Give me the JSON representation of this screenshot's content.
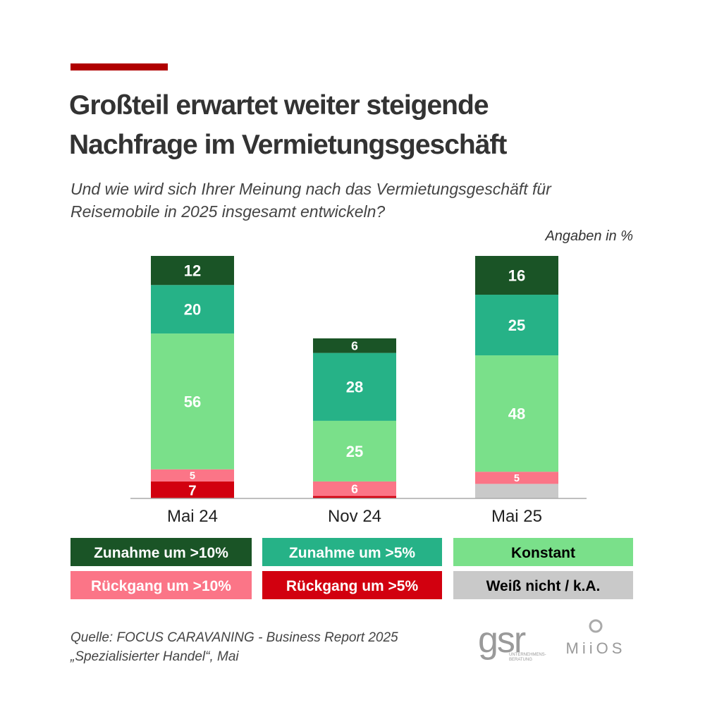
{
  "chart_data": {
    "type": "stacked-bar",
    "title": [
      "Großteil erwartet weiter steigende",
      "Nachfrage im Vermietungsgeschäft"
    ],
    "subtitle": [
      "Und wie wird sich Ihrer Meinung nach das Vermietungsgeschäft für",
      "Reisemobile in 2025 insgesamt entwickeln?"
    ],
    "unit_note": "Angaben in %",
    "categories": [
      "Mai 24",
      "Nov 24",
      "Mai 25"
    ],
    "ylim": [
      0,
      100
    ],
    "series": [
      {
        "name": "Weiß nicht / k.A.",
        "color": "#c9c9c9",
        "values": [
          0,
          0,
          6
        ],
        "value_labels": [
          null,
          null,
          null
        ]
      },
      {
        "name": "Rückgang um >5%",
        "color": "#d2000f",
        "values": [
          7,
          1,
          0
        ],
        "value_labels": [
          "7",
          null,
          null
        ]
      },
      {
        "name": "Rückgang um >10%",
        "color": "#fb7587",
        "values": [
          5,
          6,
          5
        ],
        "value_labels": [
          "5",
          "6",
          "5"
        ]
      },
      {
        "name": "Konstant",
        "color": "#7ae08a",
        "values": [
          56,
          25,
          48
        ],
        "value_labels": [
          "56",
          "25",
          "48"
        ]
      },
      {
        "name": "Zunahme um >5%",
        "color": "#26b287",
        "values": [
          20,
          28,
          25
        ],
        "value_labels": [
          "20",
          "28",
          "25"
        ]
      },
      {
        "name": "Zunahme um >10%",
        "color": "#1a5426",
        "values": [
          12,
          6,
          16
        ],
        "value_labels": [
          "12",
          "6",
          "16"
        ]
      }
    ],
    "source": [
      "Quelle: FOCUS CARAVANING - Business Report 2025",
      "„Spezialisierter Handel“, Mai"
    ],
    "logos": {
      "gsr": "gsr",
      "gsr_sub": [
        "UNTERNEHMENS-",
        "BERATUNG"
      ],
      "miios": "MiiOS"
    }
  }
}
